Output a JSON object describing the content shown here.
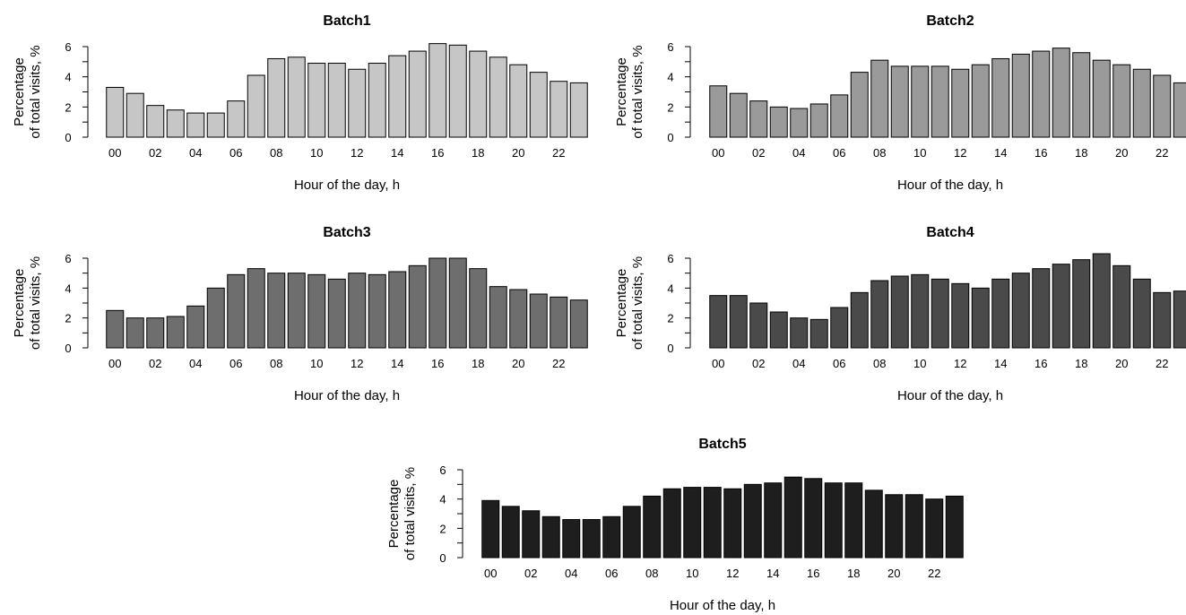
{
  "chart_data": [
    {
      "type": "bar",
      "title": "Batch1",
      "xlabel": "Hour of the day, h",
      "ylabel_line1": "Percentage",
      "ylabel_line2": "of total visits, %",
      "ylim": [
        0,
        6
      ],
      "yticks": [
        "0",
        "2",
        "4",
        "6"
      ],
      "categories": [
        "00",
        "01",
        "02",
        "03",
        "04",
        "05",
        "06",
        "07",
        "08",
        "09",
        "10",
        "11",
        "12",
        "13",
        "14",
        "15",
        "16",
        "17",
        "18",
        "19",
        "20",
        "21",
        "22",
        "23"
      ],
      "xtick_labels": [
        "00",
        "02",
        "04",
        "06",
        "08",
        "10",
        "12",
        "14",
        "16",
        "18",
        "20",
        "22"
      ],
      "values": [
        3.3,
        2.9,
        2.1,
        1.8,
        1.6,
        1.6,
        2.4,
        4.1,
        5.2,
        5.3,
        4.9,
        4.9,
        4.5,
        4.9,
        5.4,
        5.7,
        6.2,
        6.1,
        5.7,
        5.3,
        4.8,
        4.3,
        3.7,
        3.6
      ],
      "color": "#c6c6c6"
    },
    {
      "type": "bar",
      "title": "Batch2",
      "xlabel": "Hour of the day, h",
      "ylabel_line1": "Percentage",
      "ylabel_line2": "of total visits, %",
      "ylim": [
        0,
        6
      ],
      "yticks": [
        "0",
        "2",
        "4",
        "6"
      ],
      "categories": [
        "00",
        "01",
        "02",
        "03",
        "04",
        "05",
        "06",
        "07",
        "08",
        "09",
        "10",
        "11",
        "12",
        "13",
        "14",
        "15",
        "16",
        "17",
        "18",
        "19",
        "20",
        "21",
        "22",
        "23"
      ],
      "xtick_labels": [
        "00",
        "02",
        "04",
        "06",
        "08",
        "10",
        "12",
        "14",
        "16",
        "18",
        "20",
        "22"
      ],
      "values": [
        3.4,
        2.9,
        2.4,
        2.0,
        1.9,
        2.2,
        2.8,
        4.3,
        5.1,
        4.7,
        4.7,
        4.7,
        4.5,
        4.8,
        5.2,
        5.5,
        5.7,
        5.9,
        5.6,
        5.1,
        4.8,
        4.5,
        4.1,
        3.6
      ],
      "color": "#9a9a9a"
    },
    {
      "type": "bar",
      "title": "Batch3",
      "xlabel": "Hour of the day, h",
      "ylabel_line1": "Percentage",
      "ylabel_line2": "of total visits, %",
      "ylim": [
        0,
        6
      ],
      "yticks": [
        "0",
        "2",
        "4",
        "6"
      ],
      "categories": [
        "00",
        "01",
        "02",
        "03",
        "04",
        "05",
        "06",
        "07",
        "08",
        "09",
        "10",
        "11",
        "12",
        "13",
        "14",
        "15",
        "16",
        "17",
        "18",
        "19",
        "20",
        "21",
        "22",
        "23"
      ],
      "xtick_labels": [
        "00",
        "02",
        "04",
        "06",
        "08",
        "10",
        "12",
        "14",
        "16",
        "18",
        "20",
        "22"
      ],
      "values": [
        2.5,
        2.0,
        2.0,
        2.1,
        2.8,
        4.0,
        4.9,
        5.3,
        5.0,
        5.0,
        4.9,
        4.6,
        5.0,
        4.9,
        5.1,
        5.5,
        6.0,
        6.0,
        5.3,
        4.1,
        3.9,
        3.6,
        3.4,
        3.2
      ],
      "color": "#6e6e6e"
    },
    {
      "type": "bar",
      "title": "Batch4",
      "xlabel": "Hour of the day, h",
      "ylabel_line1": "Percentage",
      "ylabel_line2": "of total visits, %",
      "ylim": [
        0,
        6
      ],
      "yticks": [
        "0",
        "2",
        "4",
        "6"
      ],
      "categories": [
        "00",
        "01",
        "02",
        "03",
        "04",
        "05",
        "06",
        "07",
        "08",
        "09",
        "10",
        "11",
        "12",
        "13",
        "14",
        "15",
        "16",
        "17",
        "18",
        "19",
        "20",
        "21",
        "22",
        "23"
      ],
      "xtick_labels": [
        "00",
        "02",
        "04",
        "06",
        "08",
        "10",
        "12",
        "14",
        "16",
        "18",
        "20",
        "22"
      ],
      "values": [
        3.5,
        3.5,
        3.0,
        2.4,
        2.0,
        1.9,
        2.7,
        3.7,
        4.5,
        4.8,
        4.9,
        4.6,
        4.3,
        4.0,
        4.6,
        5.0,
        5.3,
        5.6,
        5.9,
        6.3,
        5.5,
        4.6,
        3.7,
        3.8
      ],
      "color": "#4a4a4a"
    },
    {
      "type": "bar",
      "title": "Batch5",
      "xlabel": "Hour of the day, h",
      "ylabel_line1": "Percentage",
      "ylabel_line2": "of total visits, %",
      "ylim": [
        0,
        6
      ],
      "yticks": [
        "0",
        "2",
        "4",
        "6"
      ],
      "categories": [
        "00",
        "01",
        "02",
        "03",
        "04",
        "05",
        "06",
        "07",
        "08",
        "09",
        "10",
        "11",
        "12",
        "13",
        "14",
        "15",
        "16",
        "17",
        "18",
        "19",
        "20",
        "21",
        "22",
        "23"
      ],
      "xtick_labels": [
        "00",
        "02",
        "04",
        "06",
        "08",
        "10",
        "12",
        "14",
        "16",
        "18",
        "20",
        "22"
      ],
      "values": [
        3.9,
        3.5,
        3.2,
        2.8,
        2.6,
        2.6,
        2.8,
        3.5,
        4.2,
        4.7,
        4.8,
        4.8,
        4.7,
        5.0,
        5.1,
        5.5,
        5.4,
        5.1,
        5.1,
        4.6,
        4.3,
        4.3,
        4.0,
        4.2
      ],
      "color": "#1e1e1e"
    }
  ]
}
